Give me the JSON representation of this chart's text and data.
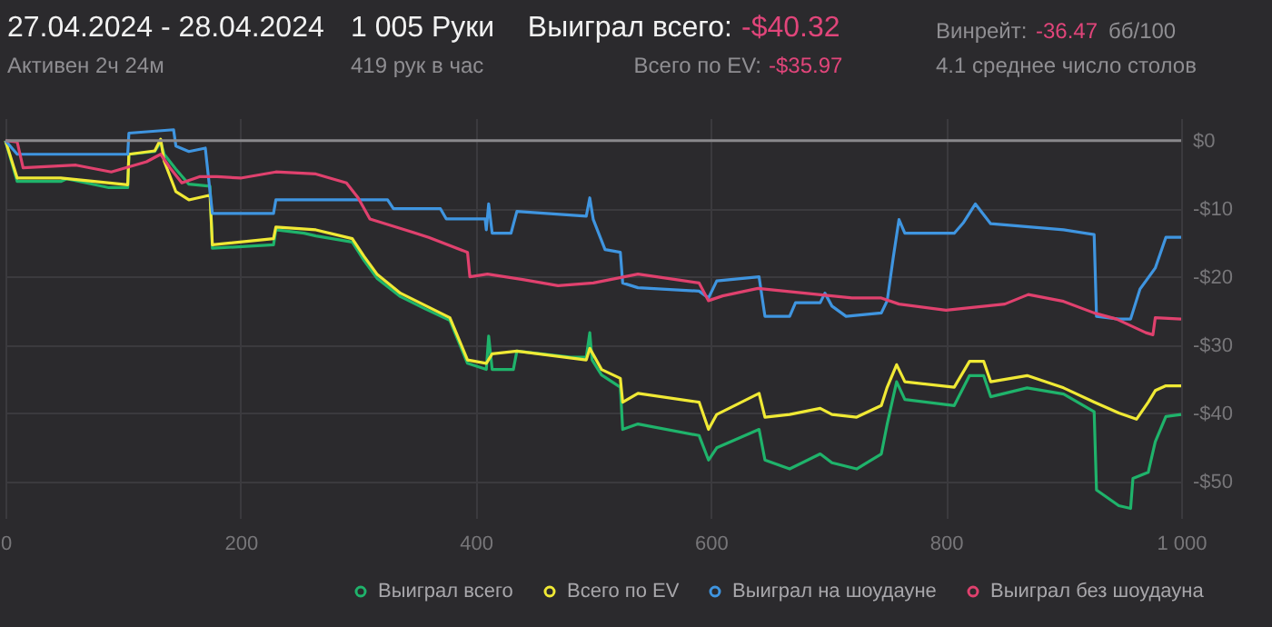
{
  "chart_data": {
    "type": "line",
    "title": "27.04.2024 - 28.04.2024",
    "annotations": [
      "Активен 2ч 24м",
      "1 005 Руки",
      "419 рук в час",
      "Выиграл всего:",
      "-$40.32",
      "Всего по EV:",
      "-$35.97",
      "Винрейт:",
      "-36.47",
      "бб/100",
      "4.1 среднее число столов"
    ],
    "xlim": [
      0,
      1000
    ],
    "xticks": [
      0,
      200,
      400,
      600,
      800,
      {
        "value": 1000,
        "label": "1 000"
      }
    ],
    "ylim": [
      -55.4,
      3.3
    ],
    "yticks": [
      {
        "value": 0,
        "label": "$0"
      },
      {
        "value": -10,
        "label": "-$10"
      },
      {
        "value": -20,
        "label": "-$20"
      },
      {
        "value": -30,
        "label": "-$30"
      },
      {
        "value": -40,
        "label": "-$40"
      },
      {
        "value": -50,
        "label": "-$50"
      }
    ],
    "grid": true,
    "legend": "bottom",
    "ref_lines": [
      {
        "axis": "y",
        "value": 0,
        "color": "#8a898c"
      }
    ],
    "series": [
      {
        "name": "Выиграл всего",
        "color": "#1fb36b",
        "x": [
          0,
          10,
          47,
          52,
          88,
          104,
          105,
          127,
          132,
          135,
          145,
          156,
          174,
          176,
          228,
          230,
          254,
          264,
          295,
          305,
          316,
          336,
          357,
          378,
          393,
          409,
          411,
          414,
          432,
          435,
          481,
          494,
          497,
          499,
          507,
          523,
          525,
          538,
          590,
          598,
          605,
          641,
          646,
          667,
          693,
          703,
          724,
          745,
          750,
          758,
          765,
          807,
          820,
          832,
          838,
          869,
          900,
          926,
          928,
          947,
          957,
          959,
          972,
          978,
          987,
          1000
        ],
        "values": [
          0,
          -6,
          -6,
          -5.6,
          -6.9,
          -6.9,
          -2,
          -1.6,
          -0.2,
          -2,
          -4.2,
          -6.4,
          -6.7,
          -15.8,
          -15.3,
          -13.1,
          -13.6,
          -14,
          -14.9,
          -17.6,
          -20.2,
          -22.9,
          -24.7,
          -26.4,
          -32.7,
          -33.6,
          -28.7,
          -33.6,
          -33.6,
          -30.9,
          -31.8,
          -31.8,
          -28.2,
          -32.2,
          -34.4,
          -36.2,
          -42.4,
          -41.6,
          -43.3,
          -46.9,
          -45.1,
          -42.4,
          -46.9,
          -48.2,
          -46,
          -47.3,
          -48.2,
          -46,
          -41.6,
          -35.4,
          -38,
          -38.9,
          -34.5,
          -34.5,
          -37.6,
          -36.3,
          -37.2,
          -39.8,
          -51.3,
          -53.6,
          -54,
          -49.6,
          -48.7,
          -44.2,
          -40.5,
          -40.2
        ]
      },
      {
        "name": "Всего по EV",
        "color": "#f0e935",
        "x": [
          0,
          10,
          47,
          104,
          105,
          127,
          132,
          135,
          145,
          156,
          174,
          176,
          228,
          230,
          264,
          295,
          305,
          316,
          336,
          357,
          378,
          393,
          409,
          414,
          435,
          494,
          497,
          507,
          523,
          525,
          538,
          590,
          598,
          605,
          641,
          646,
          667,
          693,
          703,
          724,
          745,
          750,
          758,
          765,
          807,
          820,
          832,
          838,
          869,
          900,
          926,
          947,
          957,
          962,
          972,
          978,
          987,
          1000
        ],
        "values": [
          0,
          -5.5,
          -5.5,
          -6.5,
          -2,
          -1.5,
          0.2,
          -3,
          -7.5,
          -8.7,
          -8,
          -15.3,
          -14.4,
          -12.7,
          -13.1,
          -14.4,
          -17,
          -19.6,
          -22.4,
          -24.2,
          -26,
          -32.2,
          -32.7,
          -31.3,
          -30.9,
          -32.2,
          -30.5,
          -33.6,
          -34.9,
          -38.4,
          -37.1,
          -38.4,
          -42.4,
          -40.2,
          -37.1,
          -40.6,
          -40.2,
          -39.3,
          -40.2,
          -40.6,
          -38.9,
          -36.2,
          -32.9,
          -35.4,
          -36.2,
          -32.4,
          -32.4,
          -35.4,
          -34.5,
          -36.3,
          -38.4,
          -40,
          -40.6,
          -40.9,
          -38.4,
          -36.7,
          -36,
          -36
        ]
      },
      {
        "name": "Выиграл на шоудауне",
        "color": "#3f95e0",
        "x": [
          0,
          10,
          104,
          105,
          143,
          145,
          156,
          170,
          176,
          228,
          230,
          325,
          330,
          370,
          375,
          408,
          409,
          411,
          414,
          430,
          435,
          494,
          497,
          500,
          510,
          523,
          525,
          538,
          590,
          598,
          605,
          641,
          646,
          667,
          672,
          693,
          697,
          703,
          715,
          745,
          750,
          755,
          760,
          765,
          807,
          815,
          825,
          838,
          900,
          926,
          928,
          947,
          957,
          965,
          978,
          987,
          1000
        ],
        "values": [
          0,
          -2,
          -2,
          1.1,
          1.6,
          -0.8,
          -1.6,
          -1.1,
          -10.7,
          -10.7,
          -8.7,
          -8.7,
          -10,
          -10,
          -11.5,
          -11.5,
          -13.1,
          -9.3,
          -13.6,
          -13.6,
          -10.4,
          -11.1,
          -8.4,
          -11.6,
          -16,
          -16.4,
          -20.9,
          -21.6,
          -22.1,
          -23.1,
          -20.6,
          -20,
          -25.8,
          -25.8,
          -23.8,
          -23.8,
          -22.4,
          -24.3,
          -25.8,
          -25.3,
          -23.5,
          -17.3,
          -11.6,
          -13.6,
          -13.6,
          -12,
          -9.3,
          -12.2,
          -13.1,
          -13.8,
          -25.8,
          -26.2,
          -26.2,
          -21.8,
          -18.7,
          -14.2,
          -14.2
        ]
      },
      {
        "name": "Выиграл без шоудауна",
        "color": "#e0416e",
        "x": [
          0,
          10,
          15,
          60,
          90,
          120,
          132,
          140,
          150,
          165,
          180,
          200,
          230,
          264,
          290,
          300,
          310,
          340,
          360,
          393,
          395,
          410,
          440,
          470,
          500,
          538,
          570,
          590,
          598,
          610,
          640,
          680,
          720,
          745,
          760,
          800,
          850,
          870,
          900,
          926,
          945,
          970,
          976,
          978,
          1000
        ],
        "values": [
          0,
          -0.2,
          -4,
          -3.6,
          -4.6,
          -3.1,
          -2,
          -4,
          -6.2,
          -5.3,
          -5.3,
          -5.5,
          -4.6,
          -4.9,
          -6.2,
          -8.4,
          -11.5,
          -13.1,
          -14.2,
          -16.4,
          -20,
          -19.6,
          -20.4,
          -21.3,
          -20.9,
          -19.6,
          -20.4,
          -20.9,
          -23.5,
          -22.8,
          -21.7,
          -22.4,
          -23.1,
          -23.1,
          -24,
          -24.9,
          -24,
          -22.6,
          -23.6,
          -25.3,
          -26.2,
          -28.2,
          -28.5,
          -26,
          -26.2
        ]
      }
    ]
  }
}
